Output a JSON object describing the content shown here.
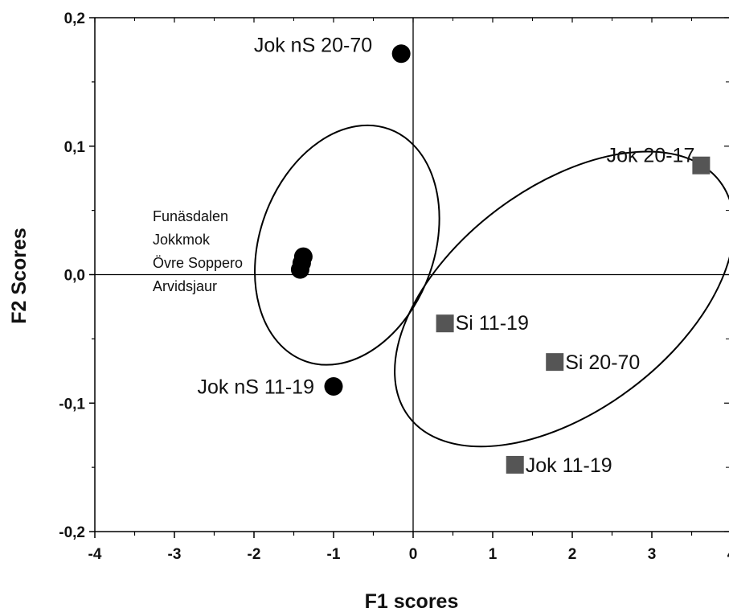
{
  "chart_data": {
    "type": "scatter",
    "xlabel": "F1 scores",
    "ylabel": "F2 Scores",
    "xlim": [
      -4,
      4
    ],
    "ylim": [
      -0.2,
      0.2
    ],
    "x_ticks": [
      -4,
      -3,
      -2,
      -1,
      0,
      1,
      2,
      3,
      4
    ],
    "x_tick_labels": [
      "-4",
      "-3",
      "-2",
      "-1",
      "0",
      "1",
      "2",
      "3",
      "4"
    ],
    "y_ticks": [
      -0.2,
      -0.1,
      0.0,
      0.1,
      0.2
    ],
    "y_tick_labels": [
      "-0,2",
      "-0,1",
      "0,0",
      "0,1",
      "0,2"
    ],
    "zero_lines": true,
    "grid": false,
    "series": [
      {
        "marker": "circle",
        "color": "#000000",
        "points": [
          {
            "x": -0.15,
            "y": 0.172,
            "label": "Jok nS 20-70"
          },
          {
            "x": -1.38,
            "y": 0.014
          },
          {
            "x": -1.4,
            "y": 0.009
          },
          {
            "x": -1.42,
            "y": 0.004
          },
          {
            "x": -1.0,
            "y": -0.087,
            "label": "Jok nS 11-19"
          }
        ]
      },
      {
        "marker": "square",
        "color": "#555555",
        "points": [
          {
            "x": 3.62,
            "y": 0.085,
            "label": "Jok 20-17"
          },
          {
            "x": 0.4,
            "y": -0.038,
            "label": "Si 11-19"
          },
          {
            "x": 1.78,
            "y": -0.068,
            "label": "Si 20-70"
          },
          {
            "x": 1.28,
            "y": -0.148,
            "label": "Jok 11-19"
          }
        ]
      }
    ],
    "annotations": [
      {
        "lines": [
          "Funäsdalen",
          "Jokkmok",
          "Övre Soppero",
          "Arvidsjaur"
        ],
        "x": -3.25,
        "y": 0.045
      }
    ],
    "ellipses": [
      {
        "cx": -0.83,
        "cy": 0.023,
        "rx": 1.55,
        "ry": 0.068,
        "angle_deg": 70
      },
      {
        "cx": 1.9,
        "cy": -0.019,
        "rx": 2.45,
        "ry": 0.087,
        "angle_deg": 37
      }
    ]
  }
}
